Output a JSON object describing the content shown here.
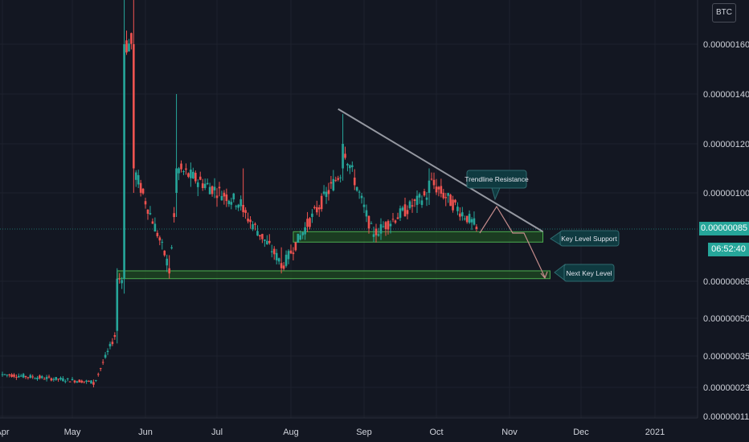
{
  "currency": "BTC",
  "last_price": "0.00000085",
  "countdown": "06:52:40",
  "annotations": {
    "trendline": "Trendline Resistance",
    "key_support": "Key Level Support",
    "next_key": "Next Key Level"
  },
  "colors": {
    "background": "#131722",
    "up": "#26a69a",
    "down": "#ef5350",
    "zone_fill": "#1f4a22",
    "zone_border": "#4caf50",
    "trendline": "#9598a1",
    "projection": "#c48b8b",
    "callout": "#0f3a40"
  },
  "chart_data": {
    "type": "candlestick",
    "pair_quote": "BTC",
    "y_ticks": [
      "0.00000160",
      "0.00000140",
      "0.00000120",
      "0.00000100",
      "0.00000065",
      "0.00000050",
      "0.00000035",
      "0.00000023",
      "0.00000011"
    ],
    "x_ticks": [
      "Apr",
      "May",
      "Jun",
      "Jul",
      "Aug",
      "Sep",
      "Oct",
      "Nov",
      "Dec",
      "2021"
    ],
    "last_price": 8.5e-07,
    "series": [
      {
        "date": "2020-04-01",
        "values": [
          2.8e-07,
          2.9e-07,
          2.7e-07,
          2.8e-07
        ]
      },
      {
        "date": "2020-05-10",
        "values": [
          2.5e-07,
          2.6e-07,
          2.3e-07,
          2.4e-07
        ]
      },
      {
        "date": "2020-05-20",
        "values": [
          4.5e-07,
          7e-07,
          4e-07,
          6.6e-07
        ]
      },
      {
        "date": "2020-05-23",
        "values": [
          6.6e-07,
          2e-06,
          6e-07,
          1.6e-06
        ]
      },
      {
        "date": "2020-05-27",
        "values": [
          1.6e-06,
          1.9e-06,
          1e-06,
          1.1e-06
        ]
      },
      {
        "date": "2020-06-11",
        "values": [
          7e-07,
          7.5e-07,
          6.6e-07,
          6.8e-07
        ]
      },
      {
        "date": "2020-06-14",
        "values": [
          1e-06,
          1.4e-06,
          9e-07,
          1.1e-06
        ]
      },
      {
        "date": "2020-07-12",
        "values": [
          9.5e-07,
          1.1e-06,
          9e-07,
          9.2e-07
        ]
      },
      {
        "date": "2020-07-28",
        "values": [
          7.2e-07,
          7.8e-07,
          6.8e-07,
          7e-07
        ]
      },
      {
        "date": "2020-08-23",
        "values": [
          1.1e-06,
          1.32e-06,
          1.05e-06,
          1.2e-06
        ]
      },
      {
        "date": "2020-09-05",
        "values": [
          8.2e-07,
          8.6e-07,
          8e-07,
          8.3e-07
        ]
      },
      {
        "date": "2020-09-28",
        "values": [
          1e-06,
          1.1e-06,
          9.5e-07,
          1.05e-06
        ]
      },
      {
        "date": "2020-10-18",
        "values": [
          8.6e-07,
          8.7e-07,
          8.4e-07,
          8.5e-07
        ]
      }
    ],
    "zones": [
      {
        "name": "Key Level Support",
        "from": "2020-08-02",
        "to": "2020-11-15",
        "low": 8e-07,
        "high": 8.4e-07
      },
      {
        "name": "Next Key Level",
        "from": "2020-05-20",
        "to": "2020-11-18",
        "low": 6.6e-07,
        "high": 6.9e-07
      }
    ],
    "trendline": {
      "from": {
        "date": "2020-08-21",
        "price": 1.34e-06
      },
      "to": {
        "date": "2020-11-15",
        "price": 8.4e-07
      }
    }
  }
}
